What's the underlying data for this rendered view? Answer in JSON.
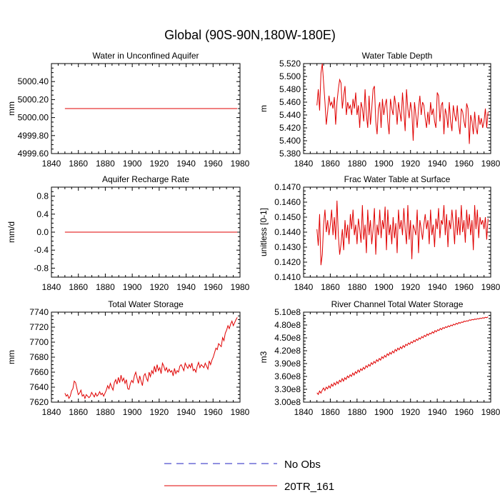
{
  "figure": {
    "title": "Global (90S-90N,180W-180E)"
  },
  "legend": {
    "items": [
      {
        "label": "No Obs",
        "style": "dashed",
        "color": "#2020c0"
      },
      {
        "label": "20TR_161",
        "style": "solid",
        "color": "#e00000"
      }
    ]
  },
  "chart_data": [
    {
      "type": "line",
      "title": "Water in Unconfined Aquifer",
      "ylabel": "mm",
      "xlabel": "",
      "xlim": [
        1840,
        1980
      ],
      "ylim": [
        4999.6,
        5000.6
      ],
      "xticks": [
        1840,
        1860,
        1880,
        1900,
        1920,
        1940,
        1960,
        1980
      ],
      "yticks": [
        4999.6,
        4999.8,
        5000.0,
        5000.2,
        5000.4
      ],
      "ytick_labels": [
        "4999.60",
        "4999.80",
        "5000.00",
        "5000.20",
        "5000.40"
      ],
      "series": [
        {
          "name": "20TR_161",
          "color": "#e00000",
          "start_year": 1850,
          "values": [
            5000.1,
            5000.1,
            5000.1,
            5000.1,
            5000.1,
            5000.1,
            5000.1,
            5000.1,
            5000.1,
            5000.1,
            5000.1,
            5000.1,
            5000.1,
            5000.1,
            5000.1,
            5000.1,
            5000.1,
            5000.1,
            5000.1,
            5000.1,
            5000.1,
            5000.1,
            5000.1,
            5000.1,
            5000.1,
            5000.1,
            5000.1,
            5000.1,
            5000.1,
            5000.1
          ]
        }
      ]
    },
    {
      "type": "line",
      "title": "Water Table Depth",
      "ylabel": "m",
      "xlabel": "",
      "xlim": [
        1840,
        1980
      ],
      "ylim": [
        5.38,
        5.52
      ],
      "xticks": [
        1840,
        1860,
        1880,
        1900,
        1920,
        1940,
        1960,
        1980
      ],
      "yticks": [
        5.38,
        5.4,
        5.42,
        5.44,
        5.46,
        5.48,
        5.5,
        5.52
      ],
      "ytick_labels": [
        "5.380",
        "5.400",
        "5.420",
        "5.440",
        "5.460",
        "5.480",
        "5.500",
        "5.520"
      ],
      "series": [
        {
          "name": "20TR_161",
          "color": "#e00000",
          "start_year": 1850,
          "values": [
            5.455,
            5.48,
            5.447,
            5.505,
            5.52,
            5.49,
            5.46,
            5.425,
            5.445,
            5.47,
            5.455,
            5.46,
            5.45,
            5.468,
            5.425,
            5.46,
            5.48,
            5.495,
            5.49,
            5.45,
            5.47,
            5.485,
            5.44,
            5.46,
            5.45,
            5.455,
            5.44,
            5.465,
            5.45,
            5.475,
            5.44,
            5.455,
            5.42,
            5.46,
            5.45,
            5.43,
            5.48,
            5.44,
            5.42,
            5.47,
            5.425,
            5.45,
            5.48,
            5.485,
            5.43,
            5.41,
            5.45,
            5.46,
            5.42,
            5.465,
            5.44,
            5.455,
            5.465,
            5.43,
            5.41,
            5.465,
            5.45,
            5.44,
            5.47,
            5.455,
            5.425,
            5.46,
            5.445,
            5.43,
            5.475,
            5.445,
            5.415,
            5.48,
            5.45,
            5.435,
            5.46,
            5.445,
            5.4,
            5.46,
            5.44,
            5.42,
            5.45,
            5.47,
            5.44,
            5.46,
            5.455,
            5.435,
            5.42,
            5.445,
            5.425,
            5.46,
            5.44,
            5.45,
            5.43,
            5.42,
            5.475,
            5.47,
            5.43,
            5.455,
            5.46,
            5.41,
            5.45,
            5.44,
            5.42,
            5.46,
            5.43,
            5.415,
            5.455,
            5.44,
            5.43,
            5.455,
            5.425,
            5.41,
            5.45,
            5.445,
            5.43,
            5.42,
            5.458,
            5.45,
            5.395,
            5.44,
            5.43,
            5.41,
            5.445,
            5.42,
            5.41,
            5.44,
            5.425,
            5.435,
            5.42,
            5.43,
            5.45,
            5.42,
            5.445
          ]
        }
      ]
    },
    {
      "type": "line",
      "title": "Aquifer Recharge Rate",
      "ylabel": "mm/d",
      "xlabel": "",
      "xlim": [
        1840,
        1980
      ],
      "ylim": [
        -1.0,
        1.0
      ],
      "xticks": [
        1840,
        1860,
        1880,
        1900,
        1920,
        1940,
        1960,
        1980
      ],
      "yticks": [
        -0.8,
        -0.4,
        0.0,
        0.4,
        0.8
      ],
      "ytick_labels": [
        "-0.8",
        "-0.4",
        "0.0",
        "0.4",
        "0.8"
      ],
      "series": [
        {
          "name": "20TR_161",
          "color": "#e00000",
          "start_year": 1850,
          "values": [
            0.0,
            0.0,
            0.0,
            0.0,
            0.0,
            0.0,
            0.0,
            0.0,
            0.0,
            0.0,
            0.0,
            0.0,
            0.0,
            0.0,
            0.0,
            0.0,
            0.0,
            0.0,
            0.0,
            0.0,
            0.0,
            0.0,
            0.0,
            0.0,
            0.0,
            0.0,
            0.0,
            0.0,
            0.0,
            0.0
          ]
        }
      ]
    },
    {
      "type": "line",
      "title": "Frac Water Table at Surface",
      "ylabel": "unitless [0-1]",
      "xlabel": "",
      "xlim": [
        1840,
        1980
      ],
      "ylim": [
        0.141,
        0.147
      ],
      "xticks": [
        1840,
        1860,
        1880,
        1900,
        1920,
        1940,
        1960,
        1980
      ],
      "yticks": [
        0.141,
        0.142,
        0.143,
        0.144,
        0.145,
        0.146,
        0.147
      ],
      "ytick_labels": [
        "0.1410",
        "0.1420",
        "0.1430",
        "0.1440",
        "0.1450",
        "0.1460",
        "0.1470"
      ],
      "series": [
        {
          "name": "20TR_161",
          "color": "#e00000",
          "start_year": 1850,
          "values": [
            0.1442,
            0.1431,
            0.1452,
            0.1418,
            0.1425,
            0.1445,
            0.1455,
            0.144,
            0.1448,
            0.1438,
            0.1445,
            0.1455,
            0.1438,
            0.145,
            0.1435,
            0.1461,
            0.1438,
            0.1425,
            0.1432,
            0.1442,
            0.1428,
            0.1448,
            0.1436,
            0.1445,
            0.1432,
            0.1452,
            0.1442,
            0.1455,
            0.1438,
            0.1445,
            0.1432,
            0.1449,
            0.1442,
            0.1433,
            0.1458,
            0.1435,
            0.1445,
            0.1426,
            0.1455,
            0.1438,
            0.1448,
            0.1432,
            0.1442,
            0.1456,
            0.1425,
            0.1445,
            0.1438,
            0.1455,
            0.1436,
            0.1448,
            0.1442,
            0.1457,
            0.1428,
            0.1455,
            0.1438,
            0.1445,
            0.1432,
            0.145,
            0.1436,
            0.1446,
            0.1426,
            0.1455,
            0.1442,
            0.1448,
            0.1438,
            0.1456,
            0.1442,
            0.1432,
            0.1458,
            0.1435,
            0.1448,
            0.1422,
            0.1445,
            0.1442,
            0.1438,
            0.1455,
            0.1426,
            0.1448,
            0.1442,
            0.1435,
            0.1445,
            0.1452,
            0.1442,
            0.1448,
            0.1432,
            0.1455,
            0.1438,
            0.1445,
            0.143,
            0.1449,
            0.1442,
            0.1456,
            0.1436,
            0.1448,
            0.1445,
            0.1458,
            0.1438,
            0.1452,
            0.143,
            0.1448,
            0.1442,
            0.1455,
            0.1445,
            0.1432,
            0.1455,
            0.1438,
            0.145,
            0.1438,
            0.1458,
            0.144,
            0.1448,
            0.1433,
            0.1455,
            0.1442,
            0.1452,
            0.1438,
            0.1448,
            0.1428,
            0.1458,
            0.1442,
            0.1455,
            0.1436,
            0.145,
            0.1445,
            0.1448,
            0.1442,
            0.145,
            0.1435,
            0.1449
          ]
        }
      ]
    },
    {
      "type": "line",
      "title": "Total Water Storage",
      "ylabel": "mm",
      "xlabel": "",
      "xlim": [
        1840,
        1980
      ],
      "ylim": [
        7620,
        7740
      ],
      "xticks": [
        1840,
        1860,
        1880,
        1900,
        1920,
        1940,
        1960,
        1980
      ],
      "yticks": [
        7620,
        7640,
        7660,
        7680,
        7700,
        7720,
        7740
      ],
      "ytick_labels": [
        "7620",
        "7640",
        "7660",
        "7680",
        "7700",
        "7720",
        "7740"
      ],
      "series": [
        {
          "name": "20TR_161",
          "color": "#e00000",
          "start_year": 1850,
          "values": [
            7632,
            7628,
            7630,
            7625,
            7628,
            7635,
            7638,
            7648,
            7646,
            7638,
            7630,
            7632,
            7636,
            7628,
            7630,
            7625,
            7630,
            7628,
            7626,
            7628,
            7633,
            7630,
            7627,
            7632,
            7628,
            7630,
            7634,
            7630,
            7632,
            7628,
            7632,
            7636,
            7642,
            7638,
            7645,
            7640,
            7636,
            7646,
            7650,
            7644,
            7653,
            7646,
            7656,
            7648,
            7652,
            7645,
            7650,
            7638,
            7637,
            7645,
            7649,
            7646,
            7655,
            7660,
            7652,
            7645,
            7655,
            7648,
            7642,
            7655,
            7658,
            7652,
            7648,
            7660,
            7654,
            7662,
            7658,
            7668,
            7660,
            7670,
            7662,
            7666,
            7658,
            7672,
            7668,
            7662,
            7666,
            7660,
            7664,
            7660,
            7662,
            7655,
            7665,
            7658,
            7662,
            7660,
            7668,
            7670,
            7666,
            7662,
            7672,
            7668,
            7665,
            7670,
            7666,
            7672,
            7662,
            7664,
            7660,
            7668,
            7673,
            7666,
            7670,
            7668,
            7666,
            7672,
            7668,
            7664,
            7675,
            7670,
            7676,
            7680,
            7686,
            7692,
            7690,
            7698,
            7696,
            7694,
            7706,
            7702,
            7712,
            7716,
            7722,
            7718,
            7724,
            7728,
            7722,
            7726,
            7730,
            7733
          ]
        }
      ]
    },
    {
      "type": "line",
      "title": "River Channel Total Water Storage",
      "ylabel": "m3",
      "xlabel": "",
      "xlim": [
        1840,
        1980
      ],
      "ylim": [
        300000000,
        510000000
      ],
      "xticks": [
        1840,
        1860,
        1880,
        1900,
        1920,
        1940,
        1960,
        1980
      ],
      "yticks": [
        300000000,
        330000000,
        360000000,
        390000000,
        420000000,
        450000000,
        480000000,
        510000000
      ],
      "ytick_labels": [
        "3.00e8",
        "3.30e8",
        "3.60e8",
        "3.90e8",
        "4.20e8",
        "4.50e8",
        "4.80e8",
        "5.10e8"
      ],
      "series": [
        {
          "name": "20TR_161",
          "color": "#e00000",
          "start_year": 1850,
          "values": [
            322000000,
            318000000,
            326000000,
            321000000,
            328000000,
            333000000,
            327000000,
            335000000,
            331000000,
            338000000,
            333000000,
            342000000,
            337000000,
            345000000,
            340000000,
            348000000,
            343000000,
            351000000,
            347000000,
            355000000,
            349000000,
            357000000,
            353000000,
            361000000,
            357000000,
            364000000,
            360000000,
            368000000,
            363000000,
            371000000,
            367000000,
            375000000,
            370000000,
            378000000,
            374000000,
            381000000,
            377000000,
            385000000,
            381000000,
            388000000,
            384000000,
            392000000,
            388000000,
            395000000,
            391000000,
            399000000,
            395000000,
            402000000,
            398000000,
            406000000,
            402000000,
            409000000,
            405000000,
            413000000,
            409000000,
            416000000,
            412000000,
            419000000,
            415000000,
            423000000,
            419000000,
            426000000,
            422000000,
            429000000,
            425000000,
            432000000,
            428000000,
            435000000,
            432000000,
            438000000,
            435000000,
            441000000,
            438000000,
            444000000,
            441000000,
            447000000,
            444000000,
            450000000,
            447000000,
            453000000,
            450000000,
            456000000,
            453000000,
            459000000,
            456000000,
            461000000,
            459000000,
            464000000,
            461000000,
            467000000,
            464000000,
            469000000,
            467000000,
            472000000,
            469000000,
            474000000,
            472000000,
            476000000,
            474000000,
            478000000,
            476000000,
            480000000,
            478000000,
            482000000,
            480000000,
            484000000,
            482000000,
            486000000,
            484000000,
            487000000,
            486000000,
            489000000,
            488000000,
            490000000,
            489000000,
            492000000,
            491000000,
            493000000,
            492000000,
            494000000,
            493000000,
            495000000,
            494000000,
            496000000,
            495000000,
            497000000,
            496000000,
            498000000,
            497000000,
            499000000
          ]
        }
      ]
    }
  ]
}
